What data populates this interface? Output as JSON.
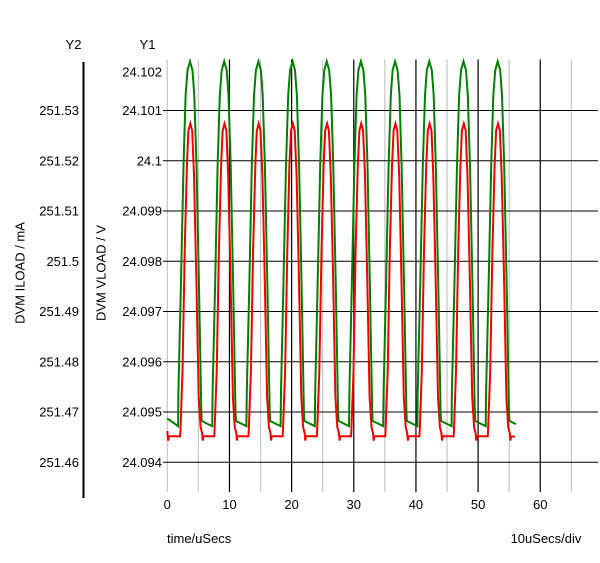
{
  "chart_data": {
    "type": "line",
    "title": "",
    "x_axis": {
      "label": "time/uSecs",
      "scale_label": "10uSecs/div",
      "tick_labels": [
        "0",
        "10",
        "20",
        "30",
        "40",
        "50",
        "60"
      ],
      "major_ticks": [
        10,
        20,
        30,
        40,
        50,
        60
      ],
      "minor_ticks": [
        0,
        5,
        15,
        25,
        35,
        45,
        55,
        65
      ],
      "range_us": [
        0,
        69.3
      ]
    },
    "y1_axis": {
      "title": "Y1",
      "label": "DVM VLOAD / V",
      "tick_labels": [
        "24.102",
        "24.101",
        "24.1",
        "24.099",
        "24.098",
        "24.097",
        "24.096",
        "24.095",
        "24.094"
      ],
      "tick_step": 0.001,
      "range": [
        24.0934,
        24.102
      ]
    },
    "y2_axis": {
      "title": "Y2",
      "label": "DVM ILOAD / mA",
      "tick_labels": [
        "251.53",
        "251.52",
        "251.51",
        "251.5",
        "251.49",
        "251.48",
        "251.47",
        "251.46"
      ],
      "tick_step": 0.01,
      "range": [
        251.454,
        251.54
      ]
    },
    "grid": {
      "major_color": "#000000",
      "minor_color": "#c6c6c6",
      "horizontal_gridlines": [
        "24.101",
        "24.1",
        "24.099",
        "24.098",
        "24.097",
        "24.096",
        "24.095",
        "24.094"
      ]
    },
    "series": [
      {
        "name": "DVM VLOAD",
        "axis": "y1",
        "color": "#008000",
        "period_us": 5.5,
        "peak_value": 24.10198,
        "base_value": 24.0948,
        "peak_times_us": [
          3.65,
          9.15,
          14.65,
          20.15,
          25.65,
          31.15,
          36.65,
          42.15,
          47.65,
          53.15
        ],
        "head": [
          [
            0.0,
            24.09487
          ]
        ],
        "pulse": [
          [
            -1.92,
            24.09472
          ],
          [
            -1.86,
            24.0954
          ],
          [
            -1.45,
            24.0976
          ],
          [
            -1.05,
            24.0999
          ],
          [
            -0.7,
            24.1013
          ],
          [
            -0.4,
            24.1018
          ],
          [
            0.0,
            24.10198
          ],
          [
            0.4,
            24.1018
          ],
          [
            0.7,
            24.1013
          ],
          [
            1.05,
            24.0999
          ],
          [
            1.45,
            24.0975
          ],
          [
            1.82,
            24.095
          ],
          [
            1.9,
            24.09482
          ]
        ],
        "tail": [
          [
            56.1,
            24.09476
          ]
        ]
      },
      {
        "name": "DVM ILOAD",
        "axis": "y2",
        "color": "#f20000",
        "period_us": 5.5,
        "peak_value": 251.5274,
        "base_value": 251.4652,
        "peak_times_us": [
          3.65,
          9.15,
          14.65,
          20.15,
          25.65,
          31.15,
          36.65,
          42.15,
          47.65,
          53.15
        ],
        "head": [
          [
            0.0,
            251.4662
          ],
          [
            0.15,
            251.4643
          ],
          [
            0.3,
            251.4652
          ]
        ],
        "pulse": [
          [
            -1.6,
            251.46515
          ],
          [
            -1.55,
            251.466
          ],
          [
            -1.2,
            251.478
          ],
          [
            -0.85,
            251.502
          ],
          [
            -0.5,
            251.519
          ],
          [
            -0.25,
            251.526
          ],
          [
            0.05,
            251.5274
          ],
          [
            0.35,
            251.526
          ],
          [
            0.65,
            251.517
          ],
          [
            1.0,
            251.498
          ],
          [
            1.4,
            251.473
          ],
          [
            1.7,
            251.467
          ],
          [
            1.95,
            251.4658
          ],
          [
            2.05,
            251.4643
          ],
          [
            2.15,
            251.4652
          ]
        ],
        "tail": [
          [
            55.9,
            251.46505
          ]
        ]
      }
    ]
  }
}
